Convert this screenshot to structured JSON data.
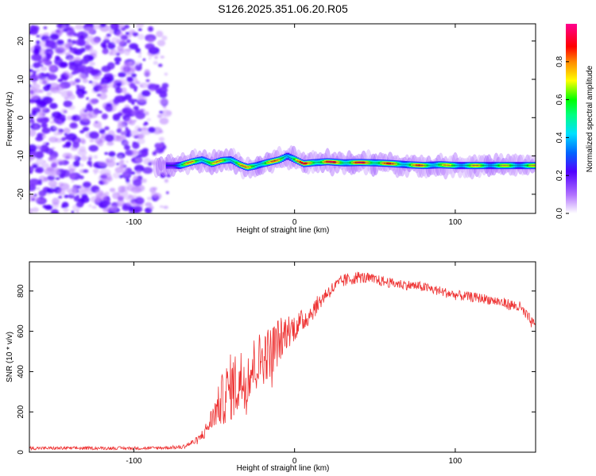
{
  "title": "S126.2025.351.06.20.R05",
  "chart_data": [
    {
      "type": "heatmap",
      "xlabel": "Height of straight line (km)",
      "ylabel": "Frequency (Hz)",
      "xlim": [
        -165,
        150
      ],
      "ylim": [
        -25,
        24.5
      ],
      "xticks": [
        -100,
        0,
        100
      ],
      "yticks": [
        -20,
        -10,
        0,
        10,
        20
      ],
      "colorbar": {
        "label": "Normalized spectral amplitude",
        "range": [
          0,
          1
        ],
        "ticks": [
          "0.0",
          "0.2",
          "0.4",
          "0.6",
          "0.8"
        ],
        "tick_values": [
          0.0,
          0.2,
          0.4,
          0.6,
          0.8
        ]
      },
      "noise_region_x": [
        -165,
        -78
      ],
      "line_trace": {
        "x": [
          -80,
          -72,
          -64,
          -58,
          -52,
          -46,
          -40,
          -35,
          -30,
          -25,
          -20,
          -15,
          -10,
          -5,
          0,
          5,
          10,
          20,
          30,
          40,
          50,
          60,
          70,
          80,
          90,
          100,
          110,
          120,
          130,
          140,
          150
        ],
        "y": [
          -12.5,
          -12.5,
          -11.5,
          -11.0,
          -12.0,
          -11.2,
          -11.0,
          -12.2,
          -13.0,
          -12.6,
          -12.0,
          -11.5,
          -11.0,
          -10.0,
          -11.0,
          -12.0,
          -11.8,
          -11.5,
          -11.8,
          -11.7,
          -11.8,
          -12.0,
          -12.3,
          -12.5,
          -12.3,
          -12.5,
          -12.5,
          -12.5,
          -12.5,
          -12.5,
          -12.5
        ],
        "amp": [
          0.35,
          0.55,
          0.85,
          0.9,
          0.7,
          0.8,
          0.85,
          0.8,
          0.75,
          0.8,
          0.85,
          0.8,
          0.8,
          0.75,
          0.85,
          0.9,
          0.95,
          0.95,
          0.9,
          0.95,
          0.95,
          0.85,
          0.8,
          0.85,
          0.75,
          0.7,
          0.75,
          0.7,
          0.7,
          0.7,
          0.7
        ]
      }
    },
    {
      "type": "line",
      "xlabel": "Height of straight line (km)",
      "ylabel": "SNR (10 * v/v)",
      "xlim": [
        -165,
        150
      ],
      "ylim": [
        0,
        945
      ],
      "xticks": [
        -100,
        0,
        100
      ],
      "yticks": [
        0,
        200,
        400,
        600,
        800
      ],
      "color": "#ee3333",
      "envelope": {
        "x": [
          -165,
          -120,
          -90,
          -70,
          -60,
          -55,
          -50,
          -45,
          -40,
          -35,
          -30,
          -25,
          -20,
          -15,
          -10,
          -5,
          0,
          5,
          10,
          20,
          30,
          40,
          60,
          80,
          100,
          120,
          140,
          150
        ],
        "y": [
          20,
          20,
          20,
          25,
          60,
          110,
          190,
          260,
          320,
          340,
          390,
          430,
          470,
          500,
          550,
          600,
          620,
          650,
          690,
          790,
          850,
          870,
          840,
          820,
          780,
          760,
          720,
          620
        ],
        "noise": [
          8,
          8,
          8,
          10,
          20,
          40,
          70,
          130,
          170,
          170,
          160,
          150,
          140,
          130,
          120,
          90,
          70,
          60,
          50,
          35,
          35,
          30,
          25,
          25,
          25,
          25,
          30,
          30
        ]
      }
    }
  ]
}
